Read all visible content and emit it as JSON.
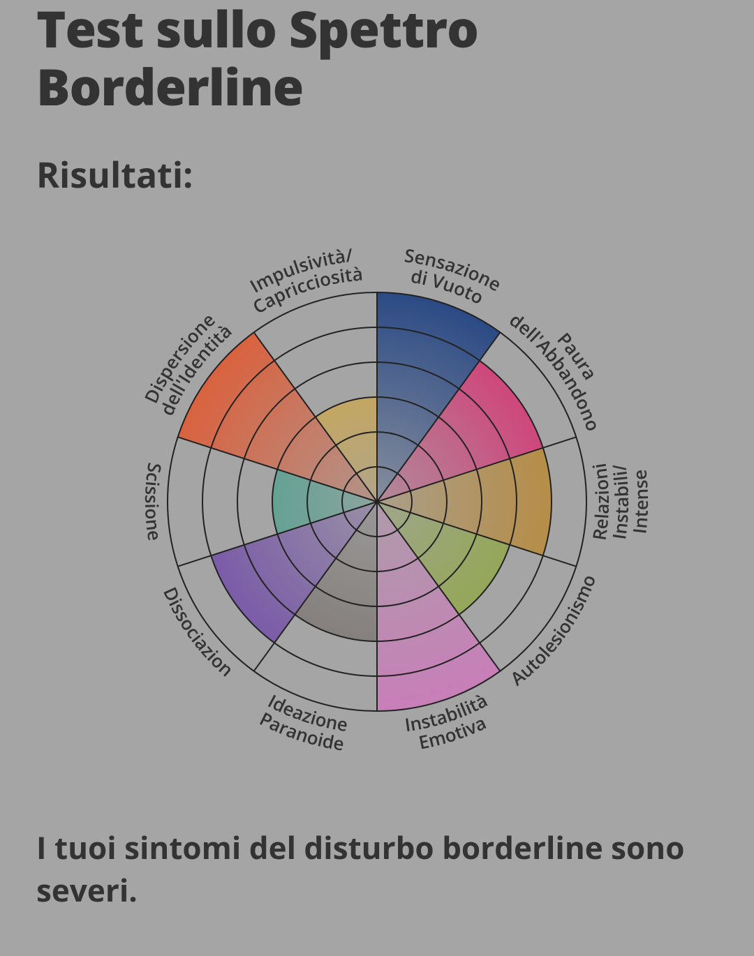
{
  "title": "Test sullo Spettro Borderline",
  "subtitle": "Risultati:",
  "result_text": "I tuoi sintomi del disturbo borderline sono severi.",
  "chart": {
    "type": "polar-rose",
    "background": "#a5a5a5",
    "axis_stroke": "#222222",
    "axis_stroke_width": 2,
    "rings": 6,
    "max_value": 6,
    "outer_radius": 300,
    "label_radius": 330,
    "label_fontsize": 26,
    "label_fontweight": 600,
    "label_color": "#333333",
    "sectors": [
      {
        "label_line1": "Sensazione",
        "label_line2": "di Vuoto",
        "value": 6,
        "color": "#2b4a85"
      },
      {
        "label_line1": "Paura",
        "label_line2": "dell'Abbandono",
        "value": 5,
        "color": "#d43a76"
      },
      {
        "label_line1": "Relazioni",
        "label_line2": "Instabili/",
        "label_line3": "Intense",
        "value": 5,
        "color": "#b88a3a"
      },
      {
        "label_line1": "Autolesionismo",
        "label_line2": "",
        "value": 4,
        "color": "#8fa83f"
      },
      {
        "label_line1": "Instabilità",
        "label_line2": "Emotiva",
        "value": 6,
        "color": "#c87fb8"
      },
      {
        "label_line1": "Ideazione",
        "label_line2": "Paranoide",
        "value": 4,
        "color": "#7a7470"
      },
      {
        "label_line1": "Dissociazion",
        "label_line2": "",
        "value": 5,
        "color": "#7451a8"
      },
      {
        "label_line1": "Scissione",
        "label_line2": "",
        "value": 3,
        "color": "#3fa08a"
      },
      {
        "label_line1": "Dispersione",
        "label_line2": "dell'Identità",
        "value": 6,
        "color": "#d9623f"
      },
      {
        "label_line1": "Impulsività/",
        "label_line2": "Capricciosità",
        "value": 3,
        "color": "#d4a63a"
      }
    ]
  }
}
